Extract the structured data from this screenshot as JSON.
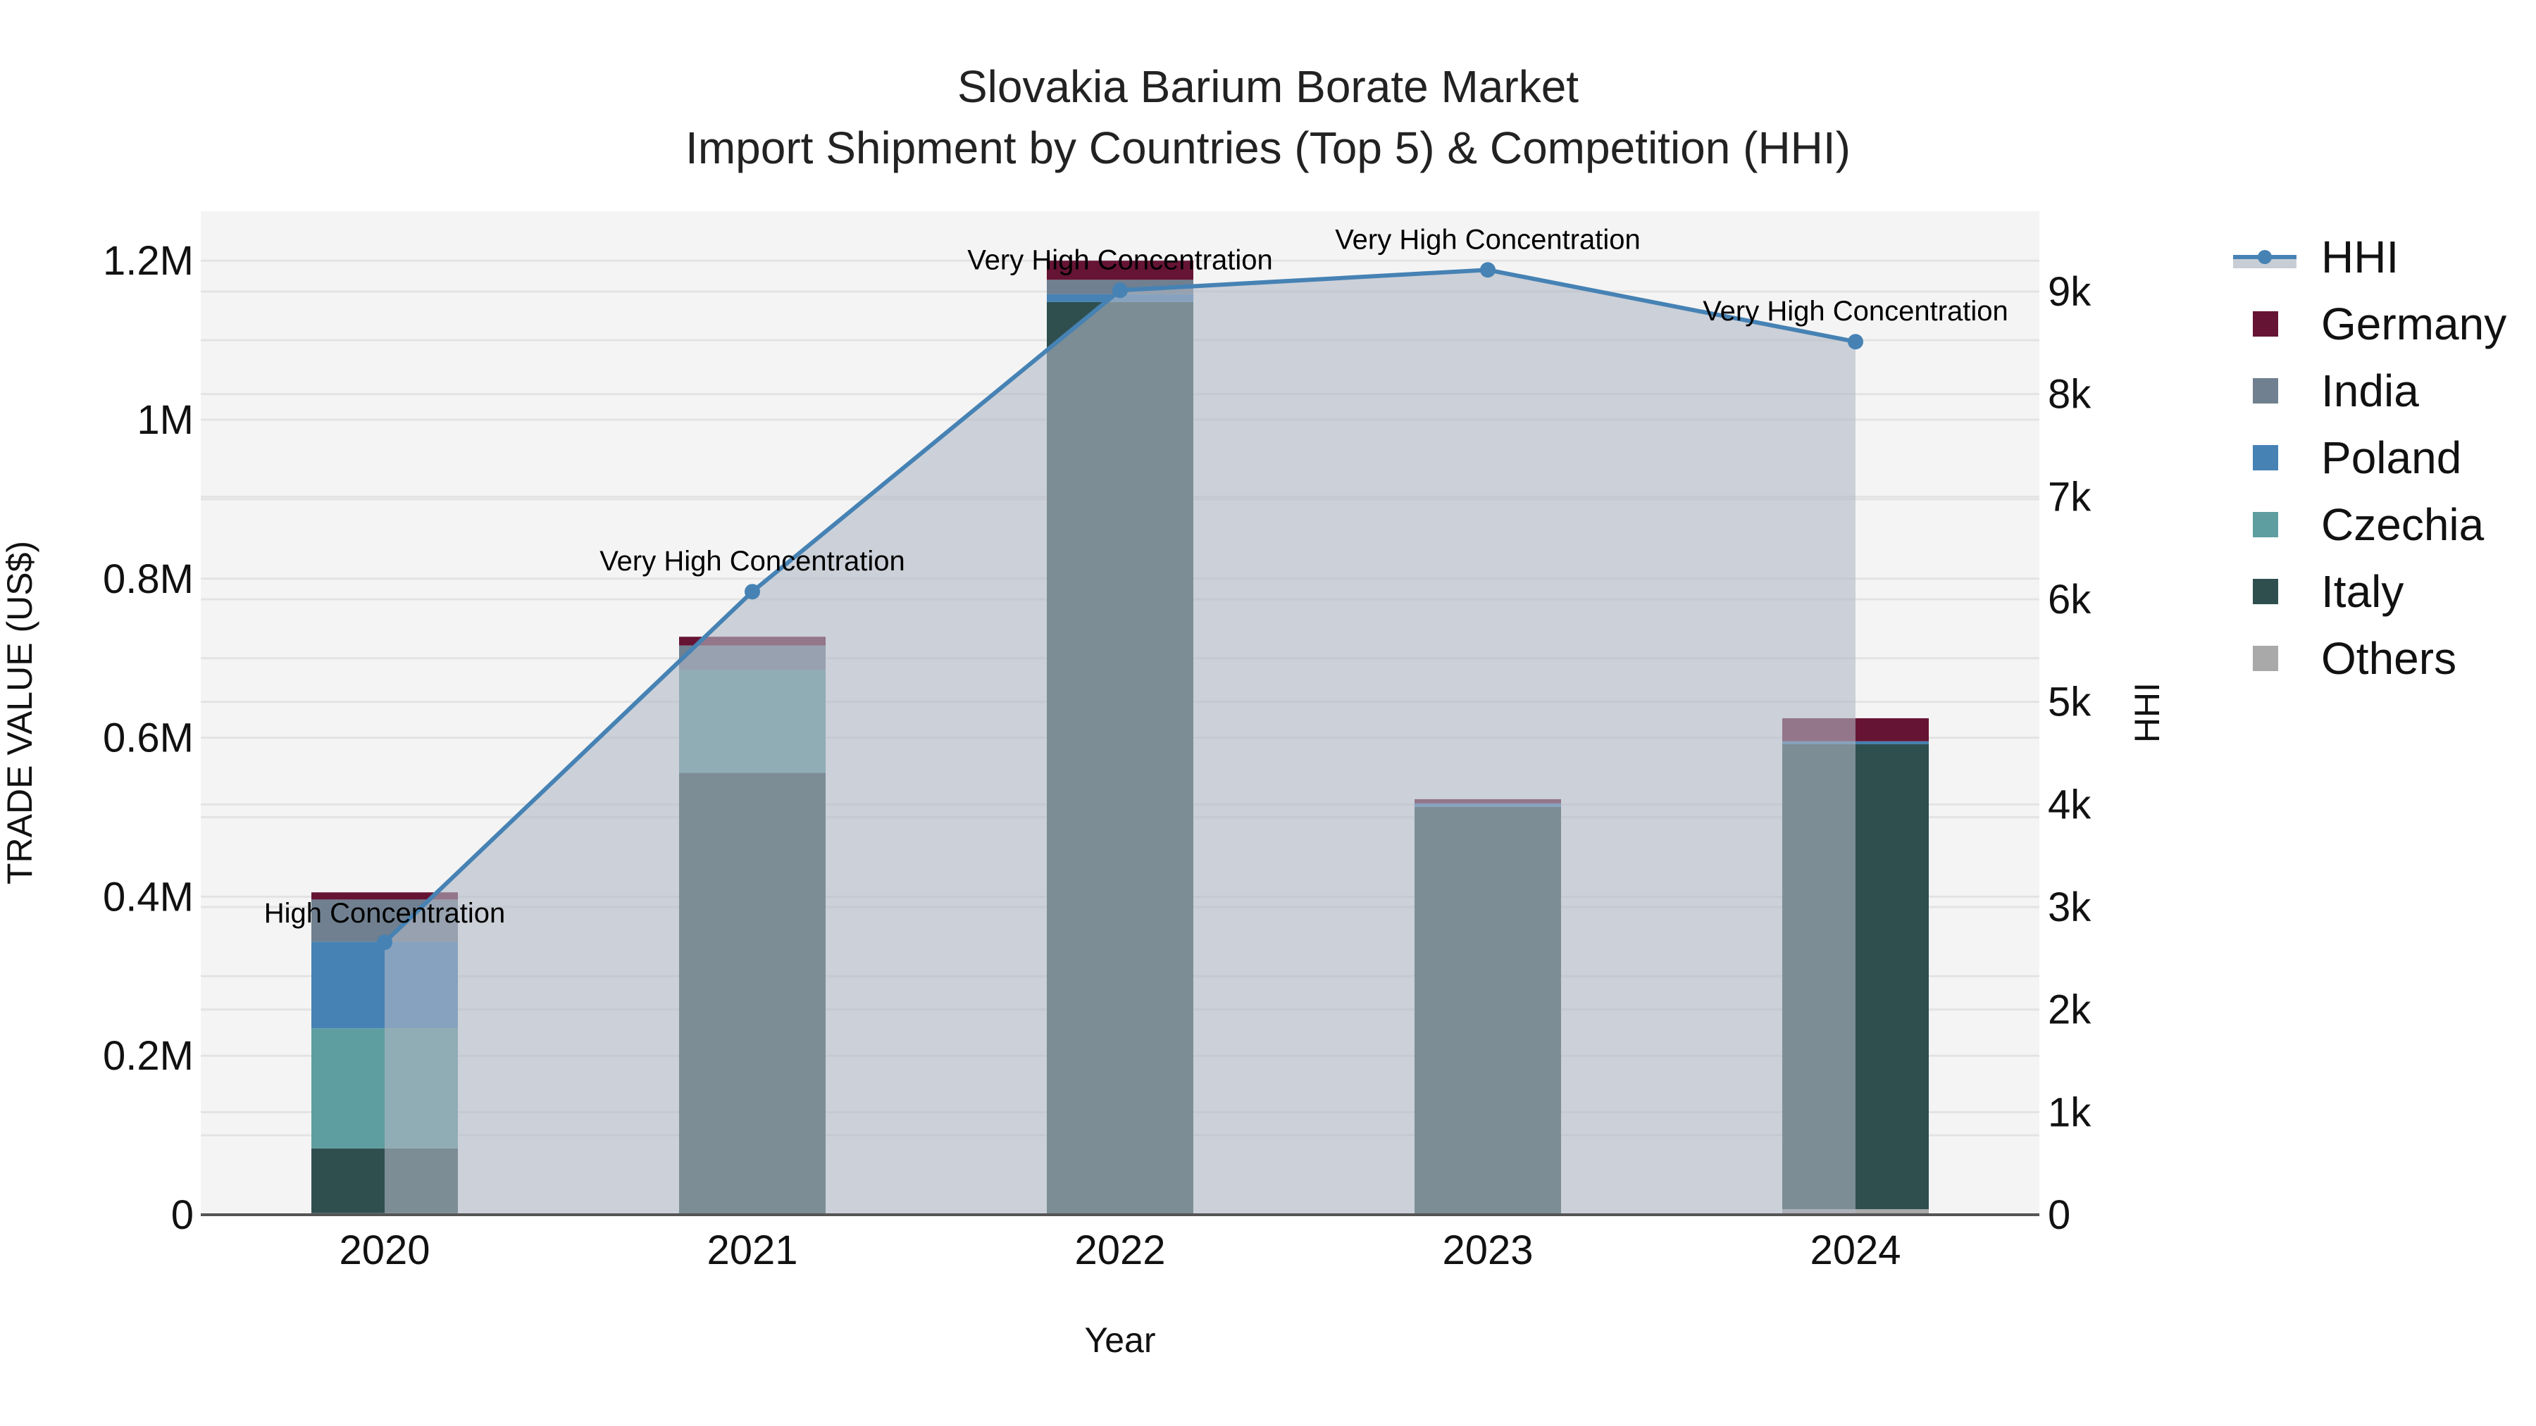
{
  "title": {
    "line1": "Slovakia Barium Borate Market",
    "line2": "Import Shipment by Countries (Top 5) & Competition (HHI)"
  },
  "axes": {
    "x_title": "Year",
    "y_left_title": "TRADE VALUE (US$)",
    "y_right_title": "HHI",
    "y_left_ticks": [
      "0",
      "0.2M",
      "0.4M",
      "0.6M",
      "0.8M",
      "1M",
      "1.2M"
    ],
    "y_right_ticks": [
      "0",
      "1k",
      "2k",
      "3k",
      "4k",
      "5k",
      "6k",
      "7k",
      "8k",
      "9k"
    ],
    "x_ticks": [
      "2020",
      "2021",
      "2022",
      "2023",
      "2024"
    ]
  },
  "legend": [
    {
      "name": "HHI",
      "type": "line",
      "color": "#4682B4"
    },
    {
      "name": "Germany",
      "type": "bar",
      "color": "#661434"
    },
    {
      "name": "India",
      "type": "bar",
      "color": "#708090"
    },
    {
      "name": "Poland",
      "type": "bar",
      "color": "#4682B4"
    },
    {
      "name": "Czechia",
      "type": "bar",
      "color": "#5F9EA0"
    },
    {
      "name": "Italy",
      "type": "bar",
      "color": "#2F4F4F"
    },
    {
      "name": "Others",
      "type": "bar",
      "color": "#A9A9A9"
    }
  ],
  "colors": {
    "plot_bg": "#F4F4F4",
    "grid": "#E3E3E3",
    "hhi_line": "#4682B4",
    "hhi_fill": "rgba(176,184,196,0.6)",
    "axis_line": "#555555"
  },
  "chart_data": {
    "type": "bar",
    "title": "Slovakia Barium Borate Market — Import Shipment by Countries (Top 5) & Competition (HHI)",
    "xlabel": "Year",
    "ylabel": "TRADE VALUE (US$)",
    "y2label": "HHI",
    "categories": [
      "2020",
      "2021",
      "2022",
      "2023",
      "2024"
    ],
    "stacked": true,
    "ylim": [
      0,
      1260000
    ],
    "y2lim": [
      0,
      9700
    ],
    "series": [
      {
        "name": "Others",
        "color": "#A9A9A9",
        "values": [
          2000,
          0,
          1000,
          1000,
          7000
        ]
      },
      {
        "name": "Italy",
        "color": "#2F4F4F",
        "values": [
          81500,
          556000,
          1147000,
          512000,
          585000
        ]
      },
      {
        "name": "Czechia",
        "color": "#5F9EA0",
        "values": [
          151000,
          129000,
          0,
          0,
          0
        ]
      },
      {
        "name": "Poland",
        "color": "#4682B4",
        "values": [
          109000,
          0,
          10000,
          4400,
          3500
        ]
      },
      {
        "name": "India",
        "color": "#708090",
        "values": [
          53000,
          31000,
          18000,
          0,
          0
        ]
      },
      {
        "name": "Germany",
        "color": "#661434",
        "values": [
          9000,
          11000,
          24000,
          5300,
          29000
        ]
      }
    ],
    "line_series": {
      "name": "HHI",
      "axis": "right",
      "color": "#4682B4",
      "fill": "tozeroy",
      "values": [
        2656,
        6074,
        9012,
        9211,
        8511
      ]
    },
    "annotations": [
      {
        "x": "2020",
        "text": "High Concentration"
      },
      {
        "x": "2021",
        "text": "Very High Concentration"
      },
      {
        "x": "2022",
        "text": "Very High Concentration"
      },
      {
        "x": "2023",
        "text": "Very High Concentration"
      },
      {
        "x": "2024",
        "text": "Very High Concentration"
      }
    ],
    "grid": true,
    "legend_position": "right"
  }
}
